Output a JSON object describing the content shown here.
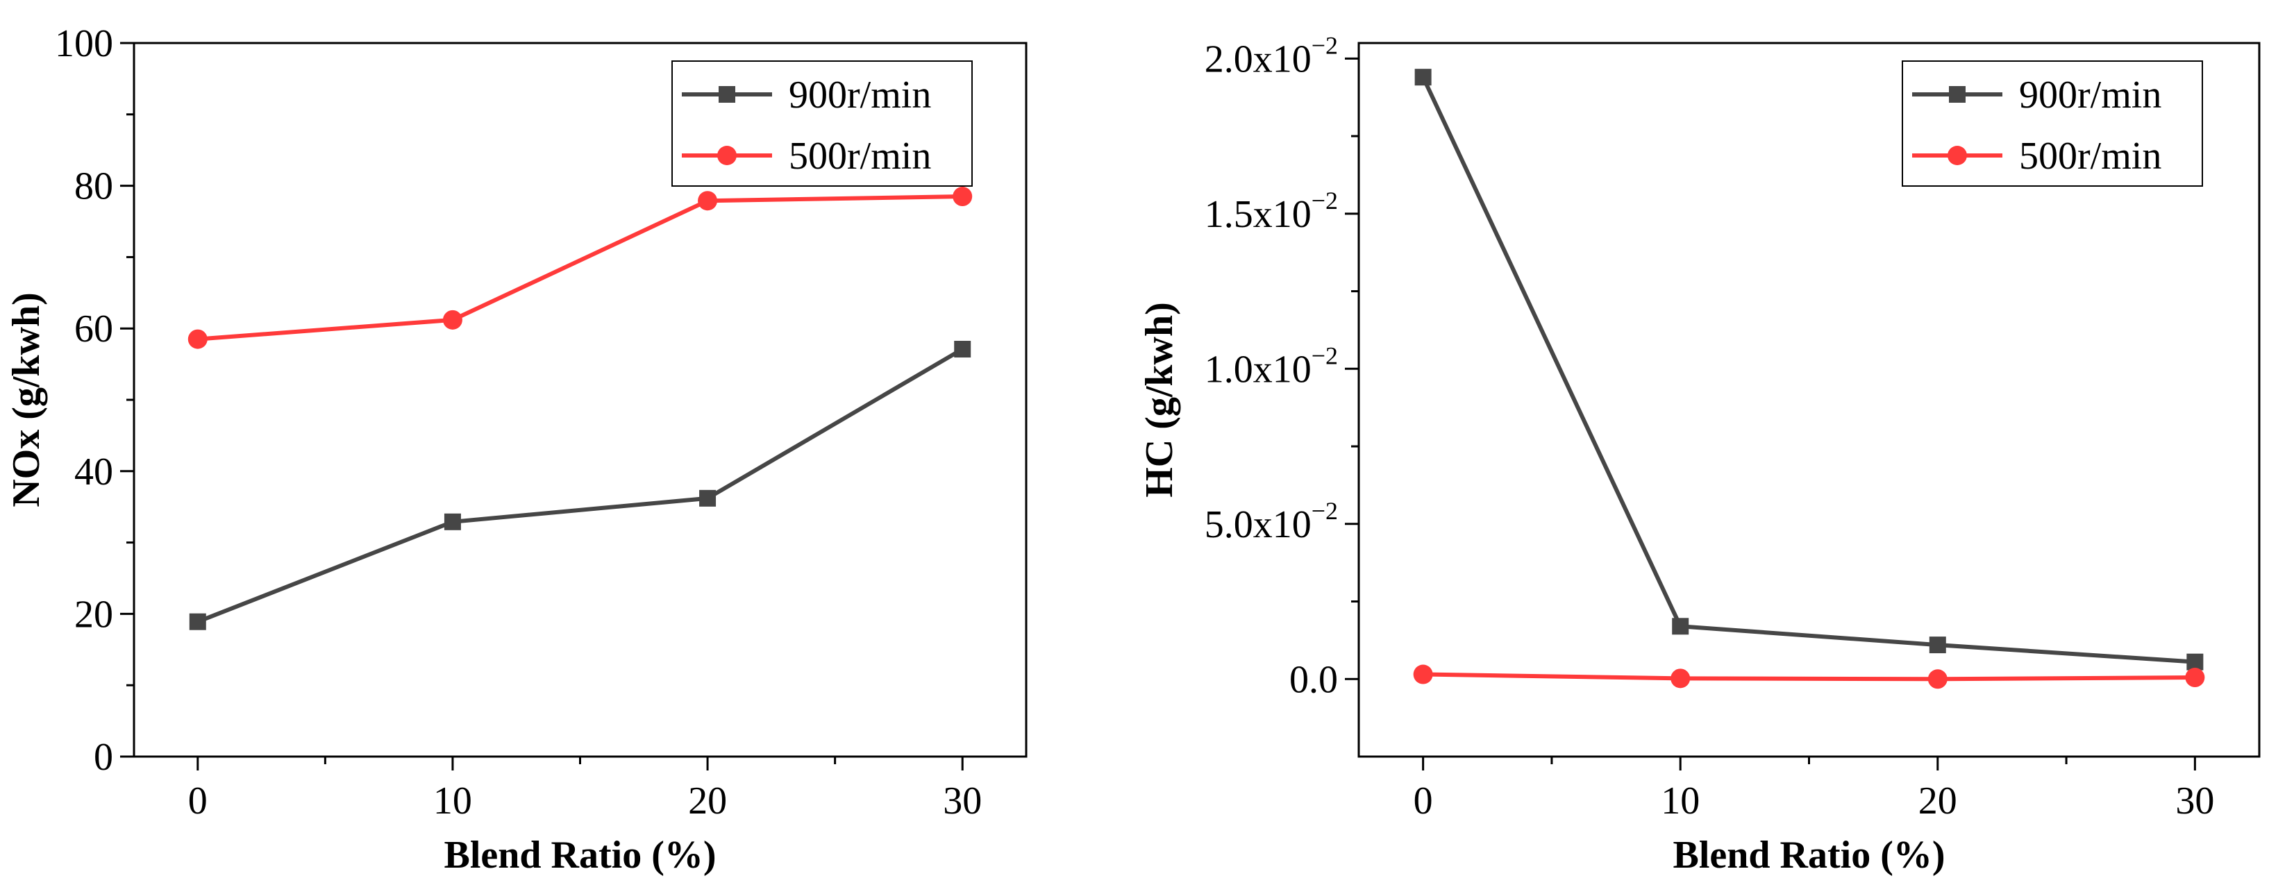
{
  "colors": {
    "s900": "#464646",
    "s500": "#ff3a3a"
  },
  "chart_data": [
    {
      "type": "line",
      "title": "",
      "xlabel": "Blend Ratio (%)",
      "ylabel": "NOx (g/kwh)",
      "x": [
        0,
        10,
        20,
        30
      ],
      "xticks": [
        "0",
        "10",
        "20",
        "30"
      ],
      "xlim": [
        -2.5,
        32.5
      ],
      "ylim": [
        0,
        100
      ],
      "yticks": [
        "0",
        "20",
        "40",
        "60",
        "80",
        "100"
      ],
      "legend_position": "top-right",
      "series": [
        {
          "name": "900r/min",
          "marker": "square",
          "values": [
            18.9,
            32.9,
            36.2,
            57.1
          ]
        },
        {
          "name": "500r/min",
          "marker": "circle",
          "values": [
            58.5,
            61.2,
            77.9,
            78.5
          ]
        }
      ]
    },
    {
      "type": "line",
      "title": "",
      "xlabel": "Blend Ratio (%)",
      "ylabel": "HC (g/kwh)",
      "x": [
        0,
        10,
        20,
        30
      ],
      "xticks": [
        "0",
        "10",
        "20",
        "30"
      ],
      "xlim": [
        -2.5,
        32.5
      ],
      "ylim": [
        -2.5,
        20.5
      ],
      "yticks": [
        {
          "value": 0,
          "base": "0.0",
          "exp": ""
        },
        {
          "value": 5,
          "base": "5.0x10",
          "exp": "−2"
        },
        {
          "value": 10,
          "base": "1.0x10",
          "exp": "−2"
        },
        {
          "value": 15,
          "base": "1.5x10",
          "exp": "−2"
        },
        {
          "value": 20,
          "base": "2.0x10",
          "exp": "−2"
        }
      ],
      "legend_position": "top-right",
      "series": [
        {
          "name": "900r/min",
          "marker": "square",
          "values": [
            19.4,
            1.7,
            1.1,
            0.55
          ]
        },
        {
          "name": "500r/min",
          "marker": "circle",
          "values": [
            0.15,
            0.02,
            0.0,
            0.05
          ]
        }
      ]
    }
  ]
}
